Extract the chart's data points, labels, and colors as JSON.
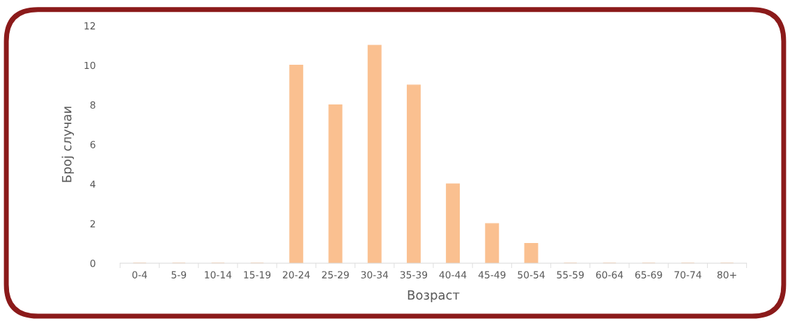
{
  "chart_data": {
    "type": "bar",
    "xlabel": "Возраст",
    "ylabel": "Број случаи",
    "categories": [
      "0-4",
      "5-9",
      "10-14",
      "15-19",
      "20-24",
      "25-29",
      "30-34",
      "35-39",
      "40-44",
      "45-49",
      "50-54",
      "55-59",
      "60-64",
      "65-69",
      "70-74",
      "80+"
    ],
    "values": [
      0,
      0,
      0,
      0,
      10,
      8,
      11,
      9,
      4,
      2,
      1,
      0,
      0,
      0,
      0,
      0
    ],
    "color": "#fac090",
    "ylim": [
      0,
      12
    ],
    "yticks": [
      0,
      2,
      4,
      6,
      8,
      10,
      12
    ],
    "grid": false,
    "legend": false
  }
}
